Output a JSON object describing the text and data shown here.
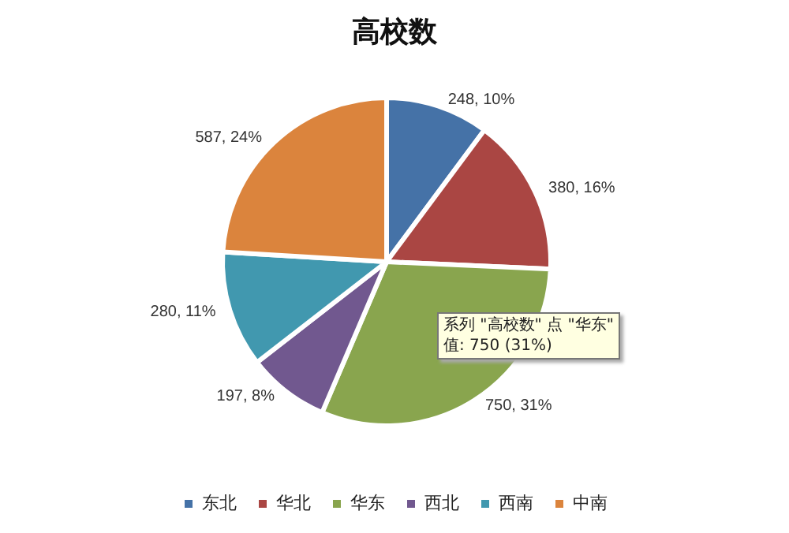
{
  "chart_data": {
    "type": "pie",
    "title": "高校数",
    "categories": [
      "东北",
      "华北",
      "华东",
      "西北",
      "西南",
      "中南"
    ],
    "values": [
      248,
      380,
      750,
      197,
      280,
      587
    ],
    "colors": [
      "#4572a7",
      "#aa4643",
      "#89a54e",
      "#71588f",
      "#4198af",
      "#db843d"
    ],
    "value_labels": [
      "248, 10%",
      "380, 16%",
      "750, 31%",
      "197, 8%",
      "280, 11%",
      "587, 24%"
    ],
    "legend": "bottom",
    "annotations": [
      "系列 \"高校数\" 点 \"华东\"\n值: 750 (31%)"
    ]
  }
}
